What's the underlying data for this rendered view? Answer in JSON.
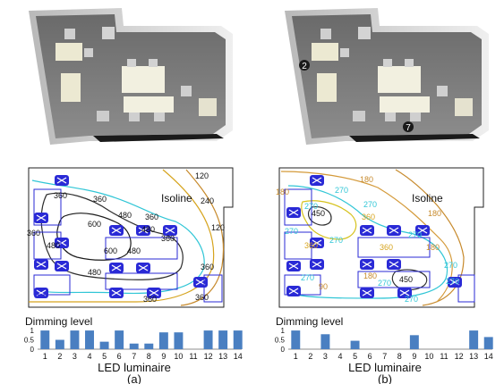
{
  "figure": {
    "panel_labels": [
      "(a)",
      "(b)"
    ],
    "isoline_title": "Isoline",
    "led_marker_labels": [
      "2",
      "7"
    ]
  },
  "panels": [
    {
      "id": "a",
      "contour_labels": [
        "120",
        "240",
        "360",
        "360",
        "480",
        "600",
        "360",
        "360",
        "480",
        "480",
        "600",
        "480",
        "360",
        "480",
        "360",
        "360",
        "360",
        "120"
      ],
      "colors": {
        "c120": "#c78a2c",
        "c240": "#d6a41e",
        "c360": "#31c6d6",
        "c480": "#2e2e2e",
        "c600": "#1b1b1b"
      }
    },
    {
      "id": "b",
      "contour_labels": [
        "180",
        "270",
        "270",
        "360",
        "180",
        "450",
        "270",
        "360",
        "270",
        "270",
        "360",
        "180",
        "270",
        "270",
        "270",
        "180",
        "450",
        "270",
        "270",
        "90",
        "270",
        "180"
      ],
      "colors": {
        "c90": "#c78a2c",
        "c180": "#d49a3a",
        "c270": "#31c6d6",
        "c360": "#d6c21e",
        "c450": "#2e2e2e"
      }
    }
  ],
  "chart_data": [
    {
      "type": "bar",
      "title": "Dimming level",
      "xlabel": "LED luminaire",
      "ylabel": "",
      "categories": [
        "1",
        "2",
        "3",
        "4",
        "5",
        "6",
        "7",
        "8",
        "9",
        "10",
        "11",
        "12",
        "13",
        "14"
      ],
      "values": [
        1.0,
        0.5,
        1.0,
        1.0,
        0.4,
        1.0,
        0.3,
        0.3,
        0.9,
        0.9,
        0.0,
        1.0,
        1.0,
        1.0
      ],
      "yticks": [
        "0",
        "0.5",
        "1"
      ],
      "ylim": [
        0,
        1.1
      ],
      "bar_color": "#4a7fc1",
      "panel_label": "(a)"
    },
    {
      "type": "bar",
      "title": "Dimming level",
      "xlabel": "LED luminaire",
      "ylabel": "",
      "categories": [
        "1",
        "2",
        "3",
        "4",
        "5",
        "6",
        "7",
        "8",
        "9",
        "10",
        "11",
        "12",
        "13",
        "14"
      ],
      "values": [
        1.0,
        0.0,
        0.8,
        0.0,
        0.45,
        0.0,
        0.0,
        0.0,
        0.75,
        0.0,
        0.0,
        0.0,
        1.0,
        0.65
      ],
      "yticks": [
        "0",
        "0.5",
        "1"
      ],
      "ylim": [
        0,
        1.1
      ],
      "bar_color": "#4a7fc1",
      "panel_label": "(b)"
    }
  ]
}
